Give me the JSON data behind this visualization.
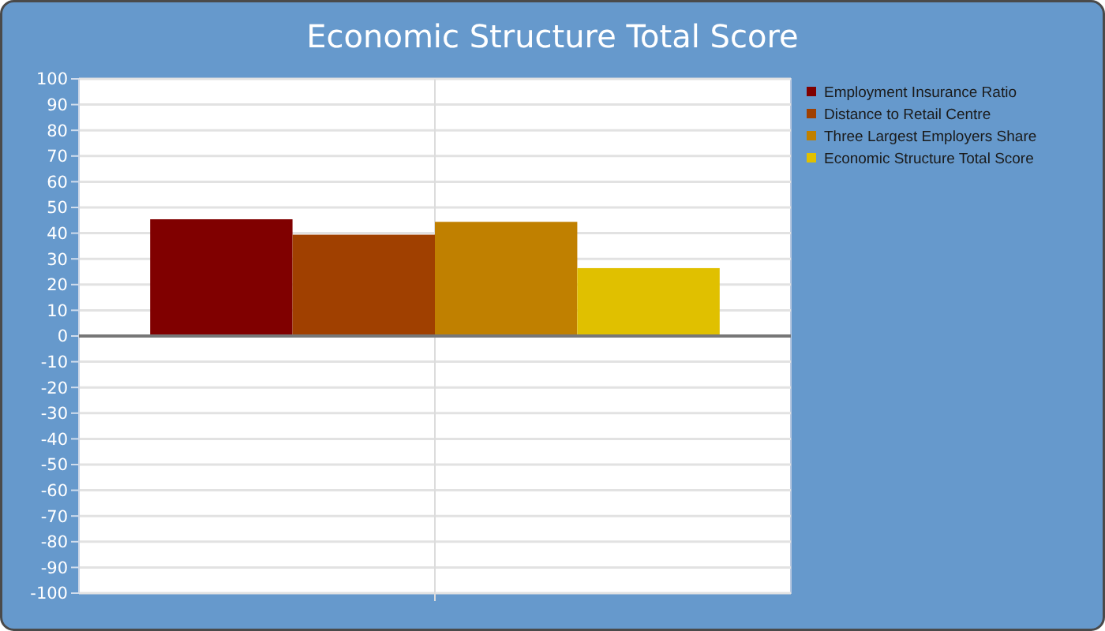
{
  "chart_data": {
    "type": "bar",
    "title": "Economic Structure Total Score",
    "categories": [
      null
    ],
    "series": [
      {
        "name": "Employment Insurance Ratio",
        "color": "#800000",
        "values": [
          45.4
        ]
      },
      {
        "name": "Distance to Retail Centre",
        "color": "#a04000",
        "values": [
          39.4
        ]
      },
      {
        "name": "Three Largest Employers Share",
        "color": "#c08000",
        "values": [
          44.4
        ]
      },
      {
        "name": "Economic Structure Total Score",
        "color": "#e0c000",
        "values": [
          26.4
        ]
      }
    ],
    "ylim": [
      -100,
      100
    ],
    "yticks": [
      -100,
      -90,
      -80,
      -70,
      -60,
      -50,
      -40,
      -30,
      -20,
      -10,
      0,
      10,
      20,
      30,
      40,
      50,
      60,
      70,
      80,
      90,
      100
    ],
    "grid": true,
    "legend": "right"
  }
}
